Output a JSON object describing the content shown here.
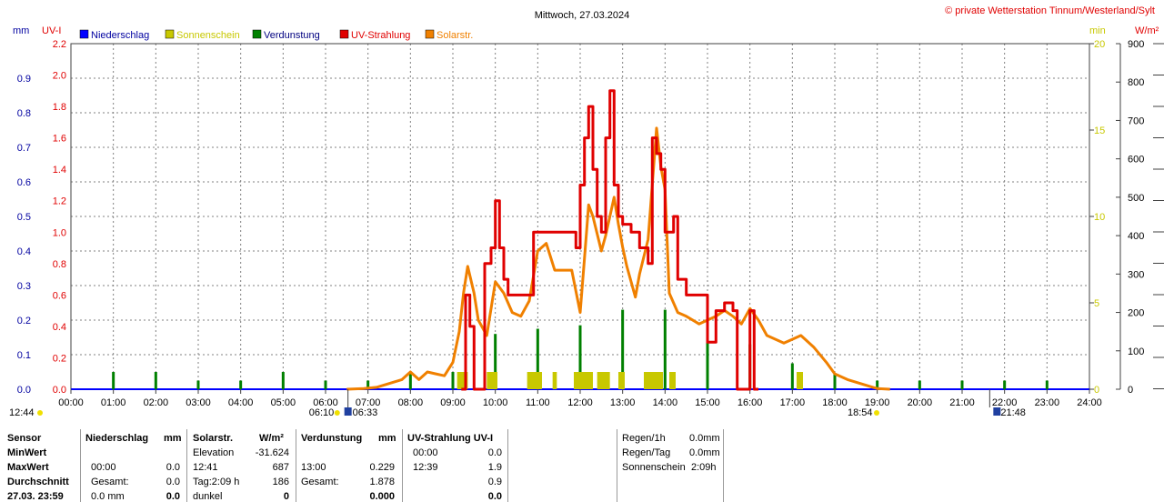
{
  "header": {
    "title": "Mittwoch, 27.03.2024",
    "copyright": "© private Wetterstation Tinnum/Westerland/Sylt",
    "left_units": [
      "mm",
      "UV-I"
    ],
    "right_units": [
      "min",
      "W/m²"
    ]
  },
  "legend": [
    {
      "label": "Niederschlag",
      "color": "#0000ff",
      "text_color": "#0000a0"
    },
    {
      "label": "Sonnenschein",
      "color": "#c8c800",
      "text_color": "#c8c800"
    },
    {
      "label": "Verdunstung",
      "color": "#008000",
      "text_color": "#000080"
    },
    {
      "label": "UV-Strahlung",
      "color": "#e00000",
      "text_color": "#e00000"
    },
    {
      "label": "Solarstr.",
      "color": "#f08000",
      "text_color": "#f08000"
    }
  ],
  "colors": {
    "niederschlag": "#0000ff",
    "sonnenschein": "#c8c800",
    "verdunstung": "#008000",
    "uv": "#e00000",
    "solar": "#f08000",
    "grid": "#808080"
  },
  "chart_data": {
    "type": "line",
    "x_unit": "hour of day",
    "x_ticks": [
      "00:00",
      "01:00",
      "02:00",
      "03:00",
      "04:00",
      "05:00",
      "06:00",
      "07:00",
      "08:00",
      "09:00",
      "10:00",
      "11:00",
      "12:00",
      "13:00",
      "14:00",
      "15:00",
      "16:00",
      "17:00",
      "18:00",
      "19:00",
      "20:00",
      "21:00",
      "22:00",
      "23:00",
      "24:00"
    ],
    "axes": {
      "mm": {
        "ticks": [
          "0.0",
          "0.1",
          "0.2",
          "0.3",
          "0.4",
          "0.5",
          "0.6",
          "0.7",
          "0.8",
          "0.9"
        ],
        "range": [
          0,
          1.0
        ]
      },
      "uv": {
        "ticks": [
          "0.0",
          "0.2",
          "0.4",
          "0.6",
          "0.8",
          "1.0",
          "1.2",
          "1.4",
          "1.6",
          "1.8",
          "2.0",
          "2.2"
        ],
        "range": [
          0,
          2.2
        ]
      },
      "min": {
        "ticks": [
          "0",
          "5",
          "10",
          "15",
          "20"
        ],
        "range": [
          0,
          20
        ]
      },
      "wm2": {
        "ticks": [
          "0",
          "100",
          "200",
          "300",
          "400",
          "500",
          "600",
          "700",
          "800",
          "900"
        ],
        "range": [
          0,
          900
        ]
      }
    },
    "sun_markers": {
      "sunrise": "06:33",
      "sunset": "18:54",
      "twilight_start": "06:10",
      "twilight_end": "21:48",
      "moon": "12:44"
    },
    "series": [
      {
        "name": "Solarstr.",
        "axis": "wm2",
        "points": [
          [
            6.5,
            0
          ],
          [
            6.9,
            2
          ],
          [
            7.2,
            5
          ],
          [
            7.5,
            15
          ],
          [
            7.8,
            25
          ],
          [
            8.0,
            45
          ],
          [
            8.2,
            25
          ],
          [
            8.4,
            45
          ],
          [
            8.6,
            40
          ],
          [
            8.8,
            35
          ],
          [
            9.0,
            70
          ],
          [
            9.15,
            150
          ],
          [
            9.25,
            250
          ],
          [
            9.35,
            320
          ],
          [
            9.5,
            250
          ],
          [
            9.6,
            180
          ],
          [
            9.8,
            140
          ],
          [
            10.0,
            280
          ],
          [
            10.2,
            250
          ],
          [
            10.4,
            200
          ],
          [
            10.6,
            190
          ],
          [
            10.8,
            230
          ],
          [
            11.0,
            360
          ],
          [
            11.2,
            380
          ],
          [
            11.4,
            310
          ],
          [
            11.8,
            310
          ],
          [
            12.0,
            200
          ],
          [
            12.1,
            340
          ],
          [
            12.2,
            480
          ],
          [
            12.3,
            450
          ],
          [
            12.5,
            360
          ],
          [
            12.6,
            400
          ],
          [
            12.8,
            500
          ],
          [
            12.9,
            430
          ],
          [
            13.0,
            370
          ],
          [
            13.1,
            320
          ],
          [
            13.3,
            240
          ],
          [
            13.4,
            300
          ],
          [
            13.6,
            390
          ],
          [
            13.8,
            680
          ],
          [
            13.9,
            580
          ],
          [
            14.0,
            520
          ],
          [
            14.1,
            250
          ],
          [
            14.3,
            200
          ],
          [
            14.5,
            190
          ],
          [
            14.8,
            170
          ],
          [
            15.0,
            180
          ],
          [
            15.2,
            190
          ],
          [
            15.4,
            205
          ],
          [
            15.6,
            190
          ],
          [
            15.8,
            170
          ],
          [
            16.0,
            210
          ],
          [
            16.2,
            180
          ],
          [
            16.4,
            140
          ],
          [
            16.8,
            120
          ],
          [
            17.0,
            130
          ],
          [
            17.2,
            140
          ],
          [
            17.5,
            110
          ],
          [
            17.8,
            70
          ],
          [
            18.0,
            40
          ],
          [
            18.3,
            25
          ],
          [
            18.6,
            15
          ],
          [
            18.9,
            5
          ],
          [
            19.0,
            2
          ],
          [
            19.3,
            0
          ]
        ]
      },
      {
        "name": "UV-Strahlung",
        "axis": "uv",
        "points": [
          [
            9.2,
            0
          ],
          [
            9.3,
            0.6
          ],
          [
            9.4,
            0.4
          ],
          [
            9.5,
            0.0
          ],
          [
            9.6,
            0.0
          ],
          [
            9.75,
            0.8
          ],
          [
            9.9,
            0.9
          ],
          [
            10.0,
            1.2
          ],
          [
            10.1,
            0.9
          ],
          [
            10.2,
            0.7
          ],
          [
            10.3,
            0.6
          ],
          [
            10.5,
            0.6
          ],
          [
            10.7,
            0.6
          ],
          [
            10.9,
            1.0
          ],
          [
            11.2,
            1.0
          ],
          [
            11.4,
            1.0
          ],
          [
            11.8,
            1.0
          ],
          [
            11.9,
            0.9
          ],
          [
            12.0,
            1.3
          ],
          [
            12.1,
            1.6
          ],
          [
            12.2,
            1.8
          ],
          [
            12.3,
            1.4
          ],
          [
            12.4,
            1.1
          ],
          [
            12.5,
            1.0
          ],
          [
            12.6,
            1.6
          ],
          [
            12.7,
            1.9
          ],
          [
            12.8,
            1.3
          ],
          [
            12.9,
            1.1
          ],
          [
            13.0,
            1.05
          ],
          [
            13.2,
            1.0
          ],
          [
            13.4,
            0.9
          ],
          [
            13.6,
            0.8
          ],
          [
            13.7,
            1.6
          ],
          [
            13.8,
            1.5
          ],
          [
            13.9,
            1.4
          ],
          [
            14.0,
            1.0
          ],
          [
            14.2,
            1.1
          ],
          [
            14.3,
            0.7
          ],
          [
            14.5,
            0.6
          ],
          [
            14.9,
            0.6
          ],
          [
            15.0,
            0.3
          ],
          [
            15.2,
            0.5
          ],
          [
            15.4,
            0.55
          ],
          [
            15.6,
            0.5
          ],
          [
            15.7,
            0.0
          ],
          [
            15.9,
            0.0
          ],
          [
            16.0,
            0.5
          ],
          [
            16.1,
            0.0
          ],
          [
            16.2,
            0.0
          ]
        ]
      },
      {
        "name": "Verdunstung",
        "axis": "min",
        "type": "bar",
        "x": [
          1.0,
          2.0,
          3.0,
          4.0,
          5.0,
          6.0,
          7.0,
          8.0,
          9.0,
          10.0,
          11.0,
          12.0,
          13.0,
          14.0,
          15.0,
          16.0,
          17.0,
          18.0,
          19.0,
          20.0,
          21.0,
          22.0,
          23.0
        ],
        "values": [
          1.0,
          1.0,
          0.5,
          0.5,
          1.0,
          0.5,
          0.5,
          1.0,
          1.0,
          3.2,
          3.5,
          3.7,
          4.6,
          4.6,
          3.4,
          2.6,
          1.5,
          0.9,
          0.5,
          0.5,
          0.5,
          0.5,
          0.5
        ]
      },
      {
        "name": "Sonnenschein",
        "axis": "min",
        "type": "bar",
        "spans": [
          [
            9.1,
            9.35
          ],
          [
            9.8,
            10.05
          ],
          [
            10.75,
            11.1
          ],
          [
            11.35,
            11.45
          ],
          [
            11.85,
            12.3
          ],
          [
            12.4,
            12.7
          ],
          [
            12.9,
            13.05
          ],
          [
            13.5,
            13.95
          ],
          [
            14.1,
            14.25
          ],
          [
            17.1,
            17.25
          ]
        ],
        "values": [
          1,
          1,
          1,
          1,
          1,
          1,
          1,
          1,
          1,
          1
        ]
      }
    ]
  },
  "table": {
    "headers": {
      "sensor": "Sensor",
      "niederschlag": "Niederschlag",
      "mm": "mm",
      "solar": "Solarstr.",
      "wm2": "W/m²",
      "verdunstung": "Verdunstung",
      "vmm": "mm",
      "uv": "UV-Strahlung UV-I"
    },
    "rows": [
      {
        "label": "MinWert",
        "n_time": "",
        "n_val": "",
        "s_time": "Elevation",
        "s_val": "-31.624",
        "v_time": "",
        "v_val": "",
        "u_time": "00:00",
        "u_val": "0.0"
      },
      {
        "label": "MaxWert",
        "n_time": "00:00",
        "n_val": "0.0",
        "s_time": "12:41",
        "s_val": "687",
        "v_time": "13:00",
        "v_val": "0.229",
        "u_time": "12:39",
        "u_val": "1.9"
      },
      {
        "label": "Durchschnitt",
        "n_time": "Gesamt:",
        "n_val": "0.0",
        "s_time": "Tag:2:09 h",
        "s_val": "186",
        "v_time": "Gesamt:",
        "v_val": "1.878",
        "u_time": "",
        "u_val": "0.9"
      },
      {
        "label": "27.03. 23:59",
        "n_time": "0.0 mm",
        "n_val": "0.0",
        "s_time": "dunkel",
        "s_val": "0",
        "v_time": "",
        "v_val": "0.000",
        "u_time": "",
        "u_val": "0.0"
      }
    ],
    "summary": [
      {
        "label": "Regen/1h",
        "value": "0.0mm"
      },
      {
        "label": "Regen/Tag",
        "value": "0.0mm"
      },
      {
        "label": "Sonnenschein",
        "value": "2:09h"
      }
    ]
  }
}
